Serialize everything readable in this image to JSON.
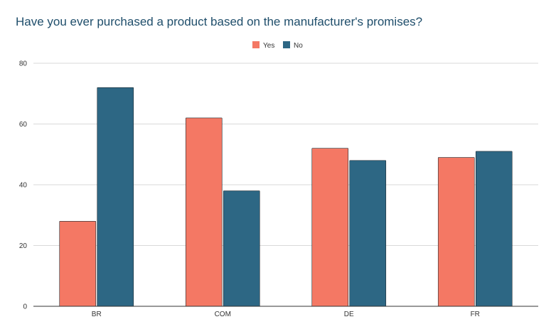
{
  "chart_data": {
    "type": "bar",
    "title": "Have you ever purchased a product based on the manufacturer's promises?",
    "xlabel": "",
    "ylabel": "",
    "categories": [
      "BR",
      "COM",
      "DE",
      "FR"
    ],
    "series": [
      {
        "name": "Yes",
        "color": "#f47864",
        "values": [
          28,
          62,
          52,
          49
        ]
      },
      {
        "name": "No",
        "color": "#2d6784",
        "values": [
          72,
          38,
          48,
          51
        ]
      }
    ],
    "ylim": [
      0,
      80
    ],
    "yticks": [
      0,
      20,
      40,
      60,
      80
    ],
    "grid": true,
    "legend_position": "top-center"
  }
}
